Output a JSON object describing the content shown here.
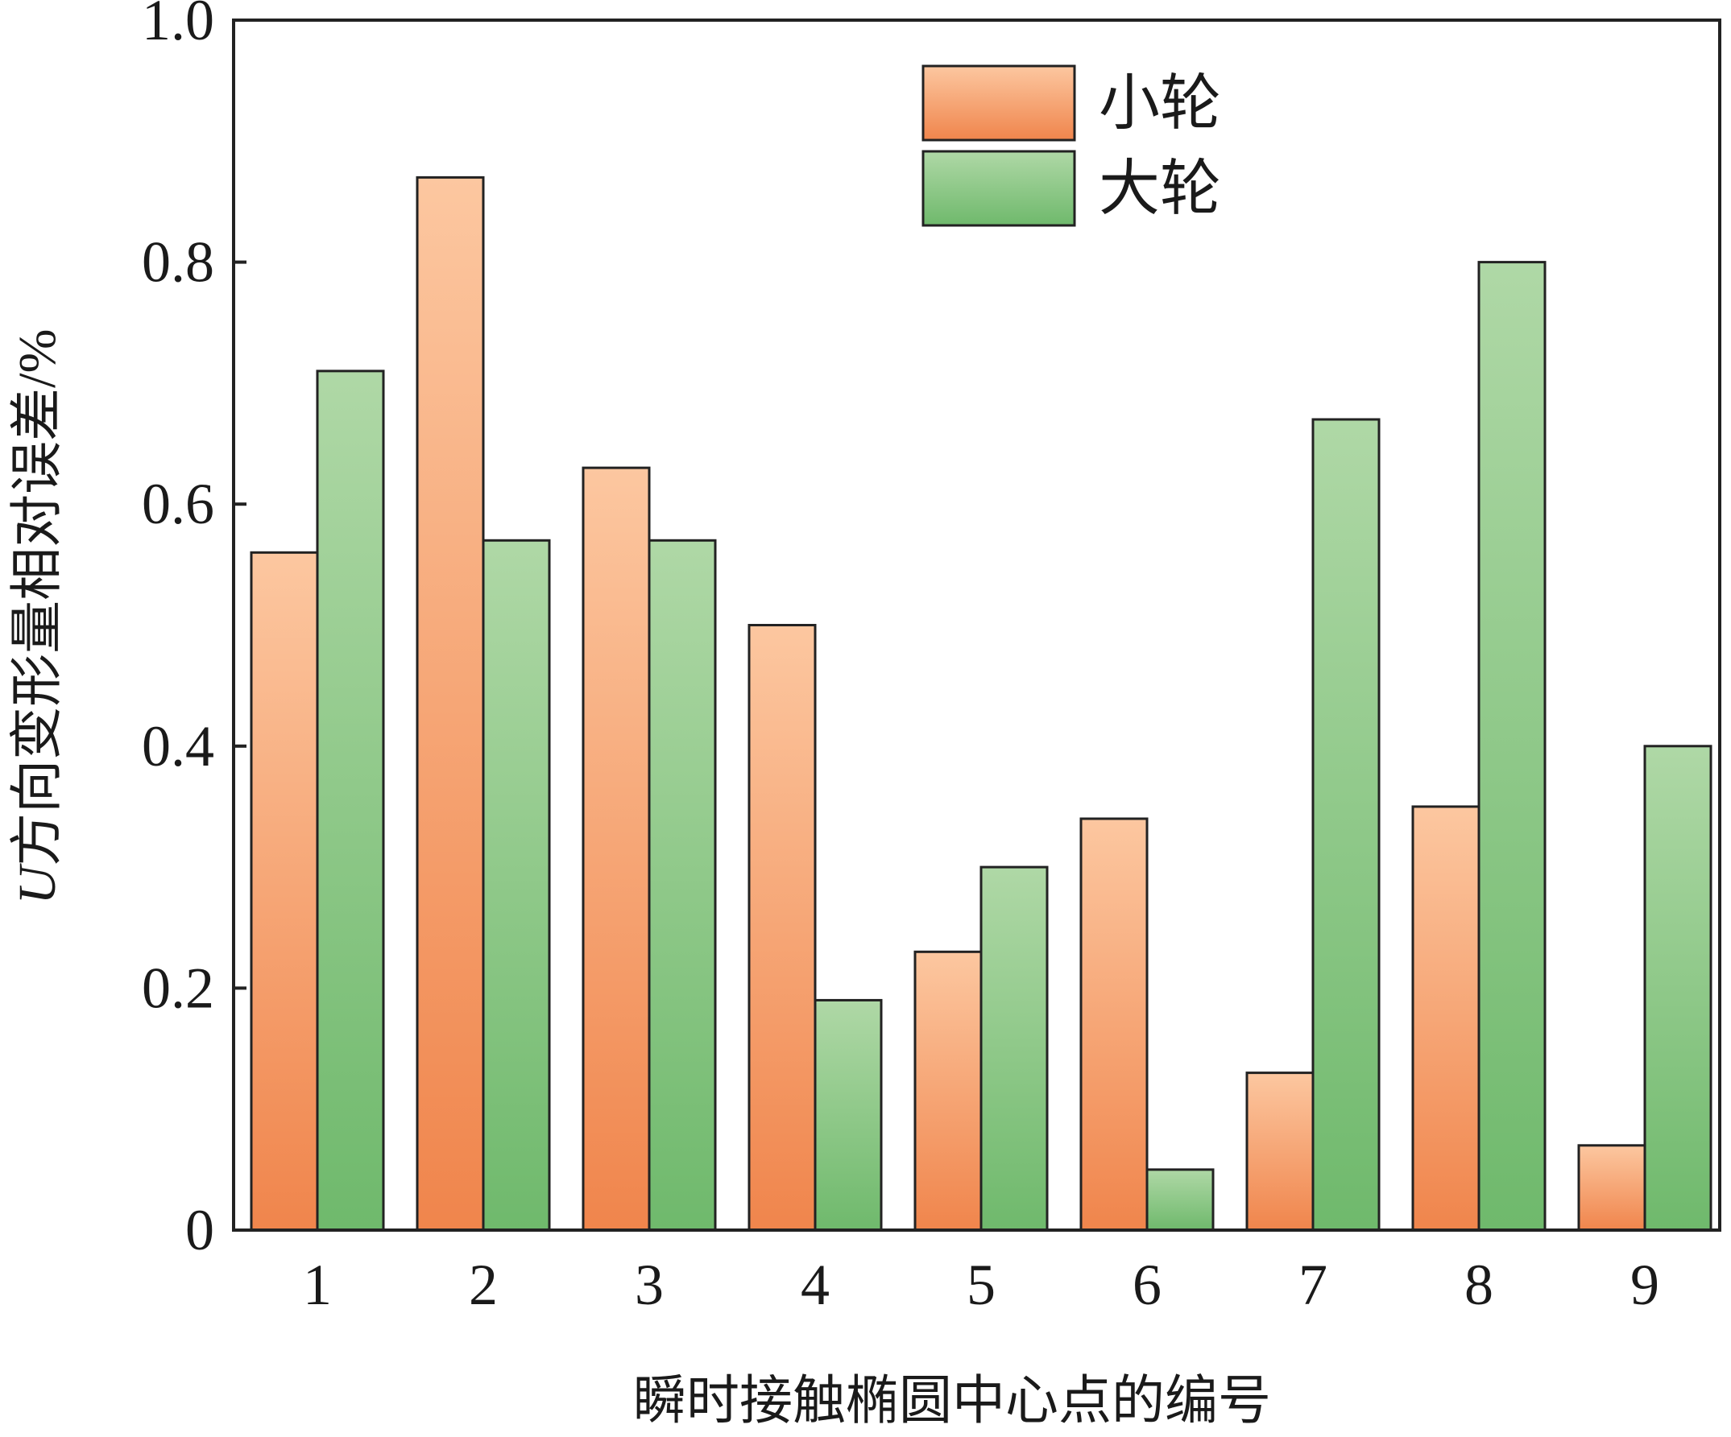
{
  "chart_data": {
    "type": "bar",
    "title": "",
    "xlabel": "瞬时接触椭圆中心点的编号",
    "ylabel_italic": "U",
    "ylabel_rest": "方向变形量相对误差/%",
    "ylim": [
      0,
      1.0
    ],
    "yticks": [
      0,
      0.2,
      0.4,
      0.6,
      0.8,
      1.0
    ],
    "ytick_labels": [
      "0",
      "0.2",
      "0.4",
      "0.6",
      "0.8",
      "1.0"
    ],
    "categories": [
      "1",
      "2",
      "3",
      "4",
      "5",
      "6",
      "7",
      "8",
      "9"
    ],
    "legend_position": "top-center",
    "series": [
      {
        "name": "小轮",
        "color_light": "#fcc7a0",
        "color_dark": "#f0854c",
        "values": [
          0.56,
          0.87,
          0.63,
          0.5,
          0.23,
          0.34,
          0.13,
          0.35,
          0.07
        ]
      },
      {
        "name": "大轮",
        "color_light": "#afd8a6",
        "color_dark": "#6fb96c",
        "values": [
          0.71,
          0.57,
          0.57,
          0.19,
          0.3,
          0.05,
          0.67,
          0.8,
          0.4
        ]
      }
    ]
  }
}
